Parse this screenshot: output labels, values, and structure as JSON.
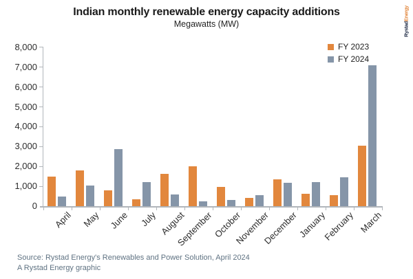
{
  "title": "Indian monthly renewable energy capacity additions",
  "subtitle": "Megawatts (MW)",
  "logo": {
    "part1": "Rystad",
    "part2": "Energy"
  },
  "footer": {
    "source": "Source: Rystad Energy's Renewables and Power Solution, April 2024",
    "credit": "A Rystad Energy graphic"
  },
  "colors": {
    "fy2023_orange": "#e2873d",
    "fy2024_gray": "#8595a8",
    "axis_gray": "#b0b5ba",
    "footer_slate": "#5f7282",
    "logo_navy": "#1e2a44"
  },
  "chart_data": {
    "type": "bar",
    "title": "Indian monthly renewable energy capacity additions",
    "subtitle": "Megawatts (MW)",
    "ylabel": "Megawatts (MW)",
    "xlabel": "",
    "categories": [
      "April",
      "May",
      "June",
      "July",
      "August",
      "September",
      "October",
      "November",
      "December",
      "January",
      "February",
      "March"
    ],
    "series": [
      {
        "name": "FY 2023",
        "color": "#e2873d",
        "values": [
          1500,
          1790,
          790,
          360,
          1620,
          2000,
          980,
          420,
          1350,
          620,
          550,
          3040
        ]
      },
      {
        "name": "FY 2024",
        "color": "#8595a8",
        "values": [
          480,
          1030,
          2880,
          1220,
          600,
          250,
          320,
          540,
          1160,
          1220,
          1440,
          7100
        ]
      }
    ],
    "ylim": [
      0,
      8000
    ],
    "ytick_interval": 1000,
    "ytick_labels": [
      "0",
      "1,000",
      "2,000",
      "3,000",
      "4,000",
      "5,000",
      "6,000",
      "7,000",
      "8,000"
    ],
    "grid": false,
    "legend_position": "top-right",
    "x_tick_rotation": 45
  }
}
